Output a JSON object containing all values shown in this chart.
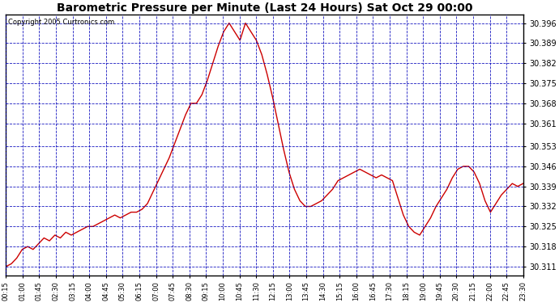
{
  "title": "Barometric Pressure per Minute (Last 24 Hours) Sat Oct 29 00:00",
  "copyright": "Copyright 2005 Curtronics.com",
  "line_color": "#cc0000",
  "background_color": "#ffffff",
  "grid_color": "#0000bb",
  "yticks": [
    30.311,
    30.318,
    30.325,
    30.332,
    30.339,
    30.346,
    30.353,
    30.361,
    30.368,
    30.375,
    30.382,
    30.389,
    30.396
  ],
  "ylim": [
    30.308,
    30.399
  ],
  "xtick_labels": [
    "00:15",
    "01:00",
    "01:45",
    "02:30",
    "03:15",
    "04:00",
    "04:45",
    "05:30",
    "06:15",
    "07:00",
    "07:45",
    "08:30",
    "09:15",
    "10:00",
    "10:45",
    "11:30",
    "12:15",
    "13:00",
    "13:45",
    "14:30",
    "15:15",
    "16:00",
    "16:45",
    "17:30",
    "18:15",
    "19:00",
    "19:45",
    "20:30",
    "21:15",
    "22:00",
    "22:45",
    "23:30"
  ],
  "data_y": [
    30.311,
    30.312,
    30.314,
    30.317,
    30.318,
    30.317,
    30.319,
    30.321,
    30.32,
    30.322,
    30.321,
    30.323,
    30.322,
    30.323,
    30.324,
    30.325,
    30.325,
    30.326,
    30.327,
    30.328,
    30.329,
    30.328,
    30.329,
    30.33,
    30.33,
    30.331,
    30.333,
    30.337,
    30.341,
    30.345,
    30.349,
    30.354,
    30.359,
    30.364,
    30.368,
    30.368,
    30.371,
    30.376,
    30.382,
    30.388,
    30.393,
    30.396,
    30.393,
    30.39,
    30.396,
    30.393,
    30.39,
    30.385,
    30.378,
    30.37,
    30.361,
    30.352,
    30.344,
    30.338,
    30.334,
    30.332,
    30.332,
    30.333,
    30.334,
    30.336,
    30.338,
    30.341,
    30.342,
    30.343,
    30.344,
    30.345,
    30.344,
    30.343,
    30.342,
    30.343,
    30.342,
    30.341,
    30.335,
    30.329,
    30.325,
    30.323,
    30.322,
    30.325,
    30.328,
    30.332,
    30.335,
    30.338,
    30.342,
    30.345,
    30.346,
    30.346,
    30.344,
    30.34,
    30.334,
    30.33,
    30.333,
    30.336,
    30.338,
    30.34,
    30.339,
    30.34
  ]
}
